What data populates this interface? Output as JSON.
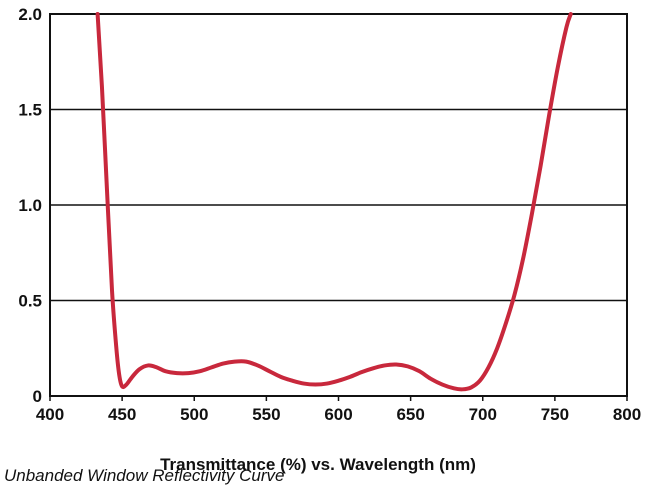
{
  "chart_data": {
    "type": "line",
    "xlabel": "Transmittance (%) vs. Wavelength (nm)",
    "ylabel": "",
    "xlim": [
      400,
      800
    ],
    "ylim": [
      0,
      2.0
    ],
    "x_ticks": [
      400,
      450,
      500,
      550,
      600,
      650,
      700,
      750,
      800
    ],
    "y_ticks": [
      0,
      0.5,
      1.0,
      1.5,
      2.0
    ],
    "y_tick_labels": [
      "0",
      "0.5",
      "1.0",
      "1.5",
      "2.0"
    ],
    "grid": "horizontal",
    "series": [
      {
        "name": "",
        "color": "#c8283c",
        "x": [
          433,
          436,
          440,
          443,
          446,
          448,
          450,
          453,
          457,
          462,
          468,
          474,
          480,
          488,
          496,
          504,
          512,
          520,
          528,
          536,
          544,
          552,
          560,
          568,
          576,
          584,
          592,
          600,
          608,
          616,
          624,
          632,
          640,
          648,
          656,
          664,
          672,
          680,
          686,
          692,
          698,
          704,
          710,
          716,
          722,
          728,
          734,
          740,
          746,
          752,
          758,
          761
        ],
        "y": [
          2.0,
          1.62,
          1.0,
          0.55,
          0.25,
          0.11,
          0.05,
          0.06,
          0.1,
          0.14,
          0.16,
          0.15,
          0.13,
          0.12,
          0.12,
          0.13,
          0.15,
          0.17,
          0.18,
          0.18,
          0.16,
          0.13,
          0.1,
          0.08,
          0.065,
          0.06,
          0.065,
          0.08,
          0.1,
          0.125,
          0.145,
          0.16,
          0.165,
          0.155,
          0.13,
          0.09,
          0.06,
          0.04,
          0.035,
          0.045,
          0.08,
          0.15,
          0.25,
          0.38,
          0.53,
          0.72,
          0.95,
          1.2,
          1.47,
          1.72,
          1.93,
          2.0
        ]
      }
    ]
  },
  "caption": "Unbanded Window Reflectivity Curve"
}
